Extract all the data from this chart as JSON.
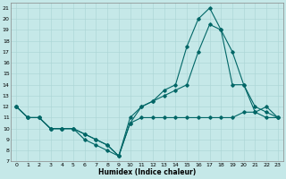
{
  "title": "",
  "xlabel": "Humidex (Indice chaleur)",
  "background_color": "#c5e8e8",
  "grid_color": "#aad4d4",
  "line_color": "#006666",
  "xlim": [
    -0.5,
    23.5
  ],
  "ylim": [
    7,
    21.5
  ],
  "xticks": [
    0,
    1,
    2,
    3,
    4,
    5,
    6,
    7,
    8,
    9,
    10,
    11,
    12,
    13,
    14,
    15,
    16,
    17,
    18,
    19,
    20,
    21,
    22,
    23
  ],
  "yticks": [
    7,
    8,
    9,
    10,
    11,
    12,
    13,
    14,
    15,
    16,
    17,
    18,
    19,
    20,
    21
  ],
  "series1_x": [
    0,
    1,
    2,
    3,
    4,
    5,
    6,
    7,
    8,
    9,
    10,
    11,
    12,
    13,
    14,
    15,
    16,
    17,
    18,
    19,
    20,
    21,
    22,
    23
  ],
  "series1_y": [
    12,
    11,
    11,
    10,
    10,
    10,
    9.5,
    9,
    8.5,
    7.5,
    10.5,
    12,
    12.5,
    13.5,
    14,
    17.5,
    20,
    21,
    19,
    17,
    14,
    12,
    11.5,
    11
  ],
  "series2_x": [
    0,
    1,
    2,
    3,
    4,
    5,
    6,
    7,
    8,
    9,
    10,
    11,
    12,
    13,
    14,
    15,
    16,
    17,
    18,
    19,
    20,
    21,
    22,
    23
  ],
  "series2_y": [
    12,
    11,
    11,
    10,
    10,
    10,
    9,
    8.5,
    8,
    7.5,
    11,
    12,
    12.5,
    13,
    13.5,
    14,
    17,
    19.5,
    19,
    14,
    14,
    11.5,
    12,
    11
  ],
  "series3_x": [
    0,
    1,
    2,
    3,
    4,
    5,
    6,
    7,
    8,
    9,
    10,
    11,
    12,
    13,
    14,
    15,
    16,
    17,
    18,
    19,
    20,
    21,
    22,
    23
  ],
  "series3_y": [
    12,
    11,
    11,
    10,
    10,
    10,
    9.5,
    9,
    8.5,
    7.5,
    10.5,
    11,
    11,
    11,
    11,
    11,
    11,
    11,
    11,
    11,
    11.5,
    11.5,
    11,
    11
  ]
}
